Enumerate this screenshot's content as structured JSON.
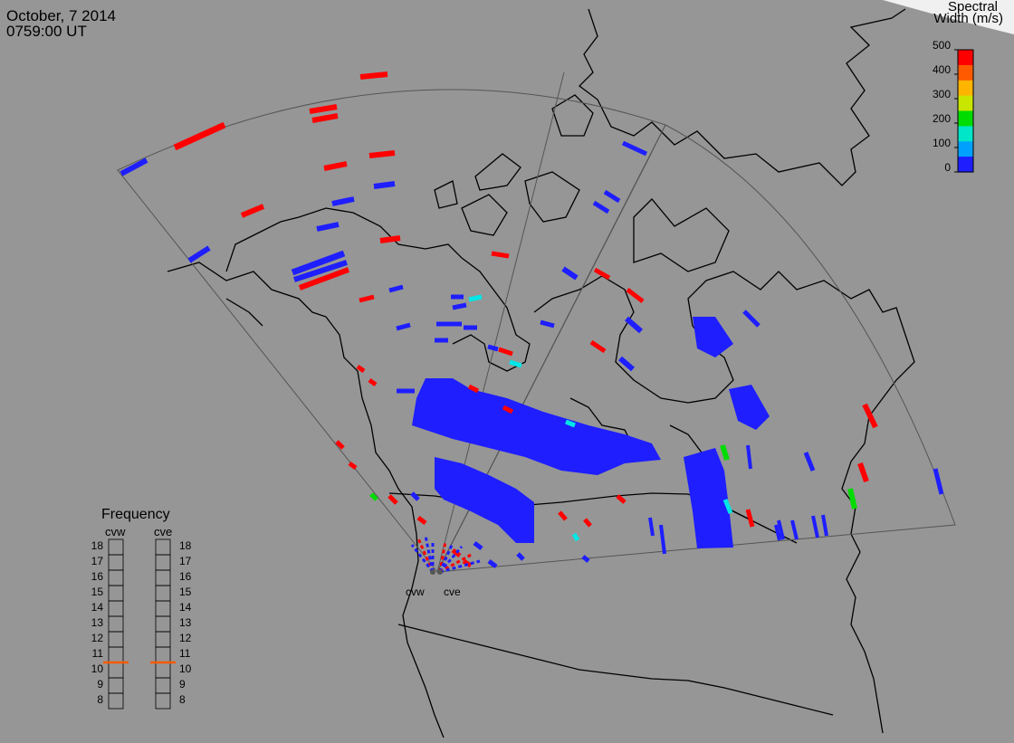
{
  "header": {
    "date": "October, 7 2014",
    "time": "0759:00 UT"
  },
  "colorbar": {
    "title_line1": "Spectral",
    "title_line2": "Width (m/s)",
    "ticks": [
      "500",
      "400",
      "300",
      "200",
      "100",
      "0"
    ],
    "colors": [
      "#ff0000",
      "#ff5a00",
      "#ffb400",
      "#c8e600",
      "#00dc00",
      "#00e6c8",
      "#00a0ff",
      "#1e1eff"
    ]
  },
  "frequency": {
    "title": "Frequency",
    "radars": [
      "cvw",
      "cve"
    ],
    "levels": [
      "18",
      "17",
      "16",
      "15",
      "14",
      "13",
      "12",
      "11",
      "10",
      "9",
      "8"
    ],
    "cvw_value": 11,
    "cve_value": 11,
    "marker_color": "#ff5a00"
  },
  "radar_sites": [
    {
      "label": "cvw"
    },
    {
      "label": "cve"
    }
  ],
  "colors": {
    "background": "#969696",
    "low_width": "#1e1eff",
    "high_width": "#ff0000",
    "cyan": "#00e6e6",
    "green": "#00dc00"
  }
}
